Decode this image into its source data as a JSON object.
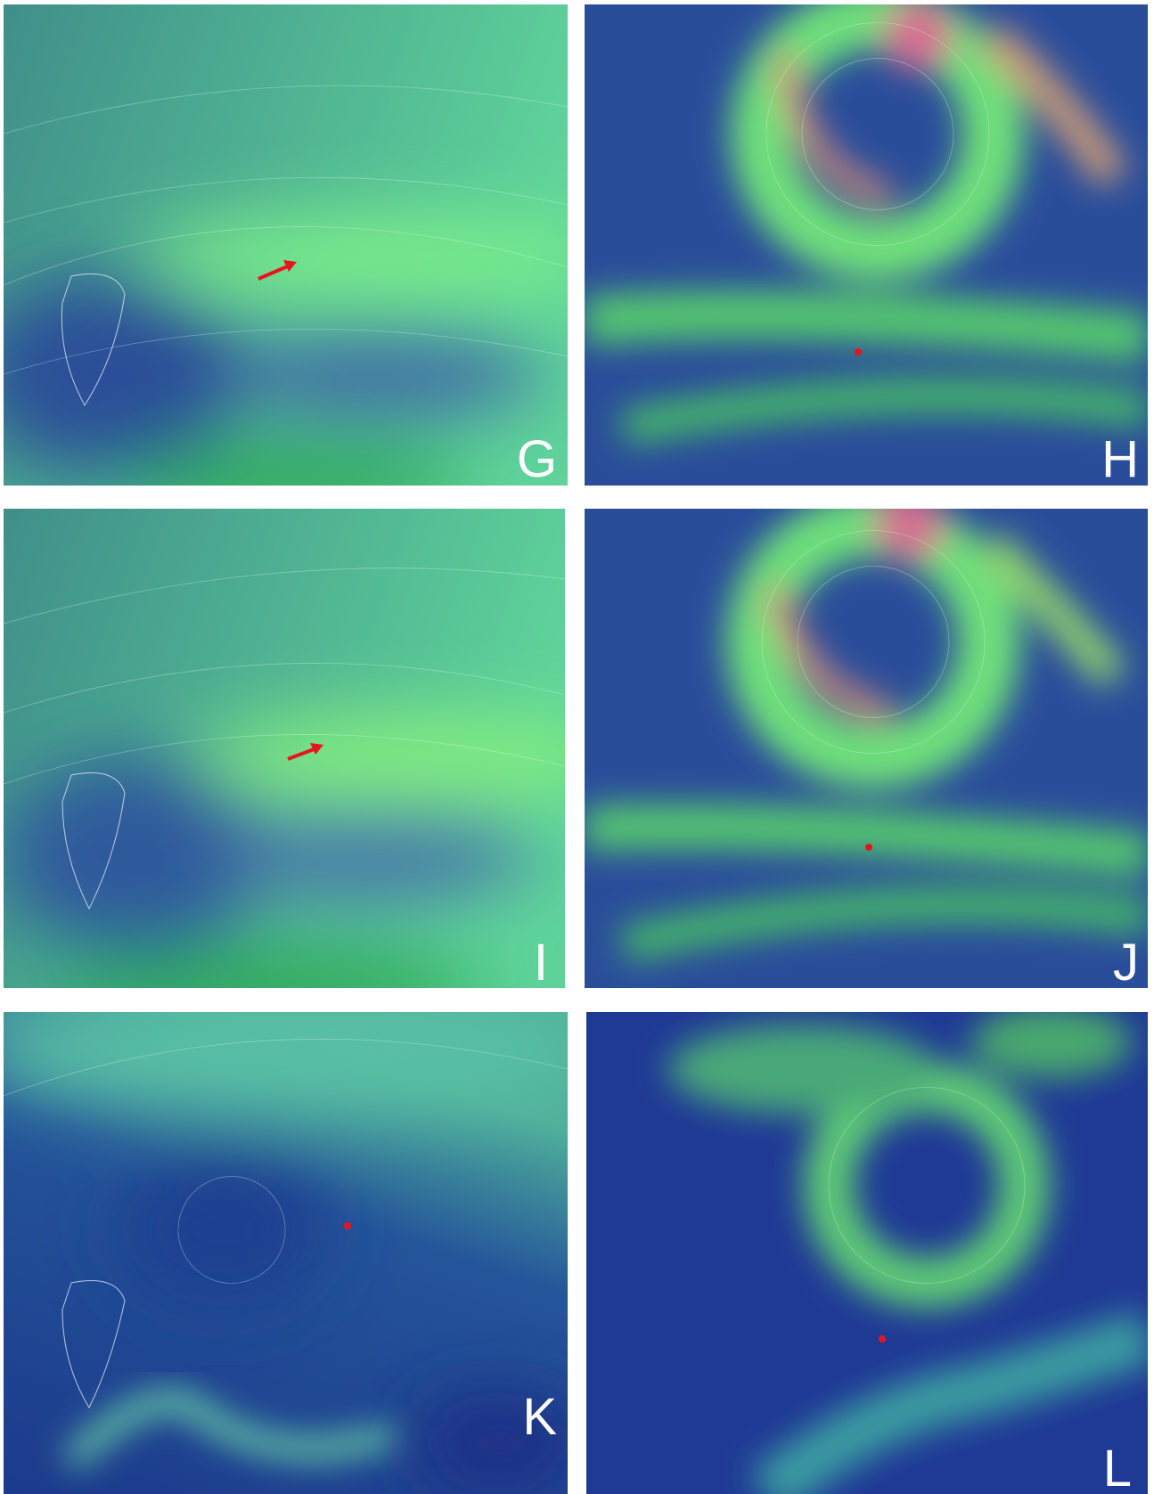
{
  "panels": [
    {
      "label": "G"
    },
    {
      "label": "H"
    },
    {
      "label": "I"
    },
    {
      "label": "J"
    },
    {
      "label": "K"
    },
    {
      "label": "L"
    }
  ]
}
